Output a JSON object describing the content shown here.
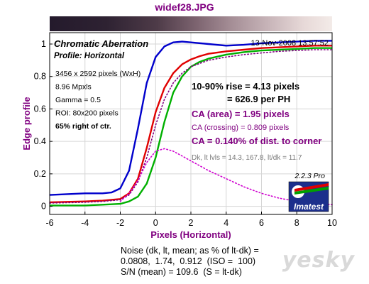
{
  "file_title": "widef28.JPG",
  "chart_data": {
    "type": "line",
    "title": "Chromatic Aberration",
    "subtitle": "Profile: Horizontal",
    "timestamp": "13-Nov-2008 13:57:52",
    "xlabel": "Pixels (Horizontal)",
    "ylabel": "Edge profile",
    "xlim": [
      -6,
      10
    ],
    "ylim": [
      -0.05,
      1.07
    ],
    "xticks": [
      "-6",
      "-4",
      "-2",
      "0",
      "2",
      "4",
      "6",
      "8",
      "10"
    ],
    "yticks": [
      "0",
      "0.2",
      "0.4",
      "0.6",
      "0.8",
      "1"
    ],
    "grid": true,
    "info_left": [
      {
        "text": "3456 x 2592 pixels (WxH)",
        "bold": false
      },
      {
        "text": "8.96 Mpxls",
        "bold": false
      },
      {
        "text": "Gamma = 0.5",
        "bold": false
      },
      {
        "text": "ROI: 80x200 pixels",
        "bold": false
      },
      {
        "text": "65% right of ctr.",
        "bold": true
      }
    ],
    "rise_line1": "10-90% rise = 4.13 pixels",
    "rise_line2": "= 626.9 per PH",
    "ca_area": "CA (area) = 1.95 pixels",
    "ca_crossing": "CA (crossing) = 0.809 pixels",
    "ca_pct": "CA = 0.140% of dist. to corner",
    "dk_text": "Dk, lt lvls = 14.3, 167.8,  lt/dk = 11.7",
    "version": "2.2.3  Pro",
    "logo_text": "Imatest",
    "colors": {
      "blue": "#0000cc",
      "red": "#e00000",
      "green": "#00b000",
      "magenta": "#d000d0",
      "purple": "#800080",
      "axis_bg": "#ffffff"
    },
    "series": [
      {
        "color": "#0000cc",
        "x": [
          -6,
          -5,
          -4,
          -3,
          -2.5,
          -2,
          -1.5,
          -1,
          -0.5,
          0,
          0.5,
          1,
          1.5,
          2,
          3,
          4,
          5,
          6,
          7,
          8,
          9,
          10
        ],
        "y": [
          0.07,
          0.075,
          0.08,
          0.08,
          0.085,
          0.11,
          0.22,
          0.48,
          0.76,
          0.92,
          0.985,
          1.01,
          1.015,
          1.01,
          1.0,
          0.99,
          0.995,
          1.005,
          1.01,
          1.015,
          1.02,
          1.02
        ]
      },
      {
        "color": "#e00000",
        "x": [
          -6,
          -4,
          -3,
          -2,
          -1.5,
          -1,
          -0.5,
          0,
          0.5,
          1,
          1.5,
          2,
          2.5,
          3,
          4,
          5,
          6,
          7,
          8,
          9,
          10
        ],
        "y": [
          0.025,
          0.03,
          0.035,
          0.045,
          0.08,
          0.17,
          0.36,
          0.58,
          0.73,
          0.82,
          0.875,
          0.905,
          0.925,
          0.94,
          0.955,
          0.965,
          0.975,
          0.98,
          0.985,
          0.99,
          0.99
        ]
      },
      {
        "color": "#00b000",
        "x": [
          -6,
          -4,
          -3,
          -2,
          -1.5,
          -1,
          -0.5,
          0,
          0.5,
          1,
          1.5,
          2,
          2.5,
          3,
          4,
          5,
          6,
          7,
          8,
          9,
          10
        ],
        "y": [
          0.005,
          0.005,
          0.01,
          0.015,
          0.03,
          0.06,
          0.14,
          0.3,
          0.52,
          0.7,
          0.8,
          0.86,
          0.89,
          0.91,
          0.935,
          0.95,
          0.96,
          0.965,
          0.97,
          0.975,
          0.975
        ]
      },
      {
        "color": "#800080",
        "style": "dotted",
        "x": [
          -6,
          -4,
          -3,
          -2,
          -1.5,
          -1,
          -0.5,
          0,
          0.5,
          1,
          1.5,
          2,
          2.5,
          3,
          4,
          5,
          6,
          7,
          8,
          9,
          10
        ],
        "y": [
          0.02,
          0.025,
          0.03,
          0.04,
          0.07,
          0.15,
          0.3,
          0.5,
          0.66,
          0.76,
          0.82,
          0.86,
          0.88,
          0.9,
          0.92,
          0.935,
          0.945,
          0.955,
          0.96,
          0.965,
          0.965
        ]
      },
      {
        "color": "#d000d0",
        "style": "dotted",
        "x": [
          -2,
          -1.5,
          -1,
          -0.5,
          0,
          0.5,
          1,
          1.5,
          2,
          3,
          4,
          5,
          6,
          7,
          8,
          9,
          10
        ],
        "y": [
          0.03,
          0.08,
          0.16,
          0.27,
          0.34,
          0.355,
          0.34,
          0.31,
          0.28,
          0.22,
          0.17,
          0.12,
          0.08,
          0.05,
          0.03,
          0.02,
          0.01
        ]
      }
    ]
  },
  "noise_block": {
    "line1": "Noise (dk, lt, mean; as % of lt-dk) =",
    "line2": "0.0808,  1.74,  0.912  (ISO =  100)",
    "line3": "S/N (mean) = 109.6  (S = lt-dk)"
  },
  "watermark": "yesky"
}
